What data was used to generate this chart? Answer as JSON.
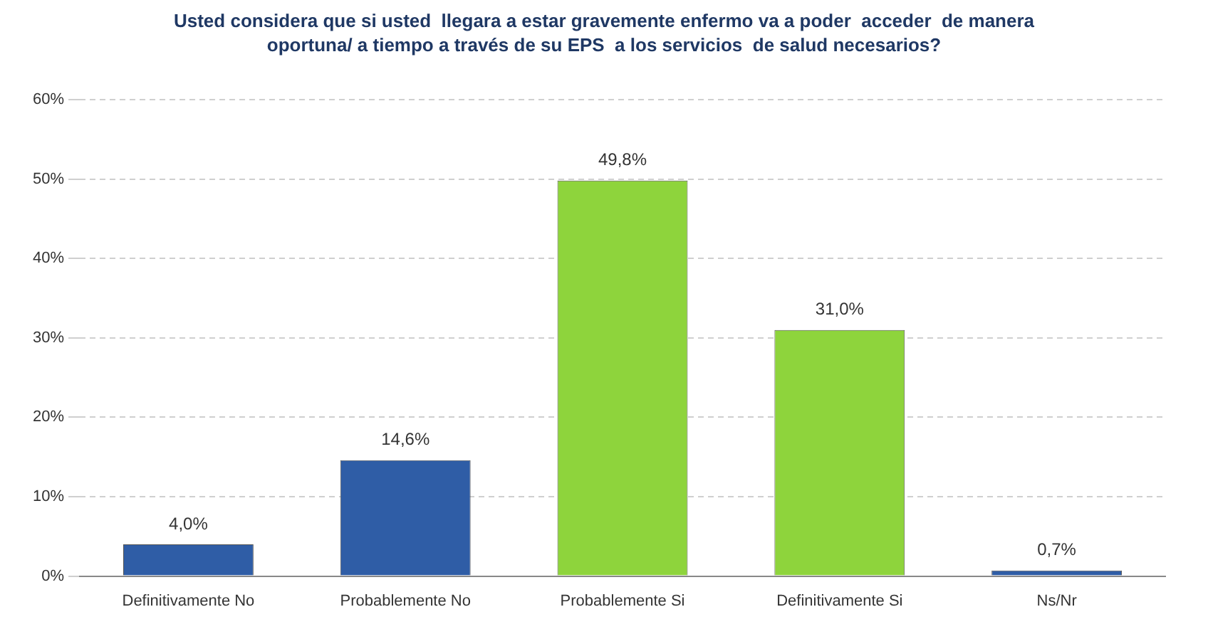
{
  "chart_data": {
    "type": "bar",
    "title": "Usted considera que si usted  llegara a estar gravemente enfermo va a poder  acceder  de manera oportuna/ a tiempo a través de su EPS  a los servicios  de salud necesarios?",
    "categories": [
      "Definitivamente No",
      "Probablemente No",
      "Probablemente Si",
      "Definitivamente Si",
      "Ns/Nr"
    ],
    "values": [
      4.0,
      14.6,
      49.8,
      31.0,
      0.7
    ],
    "colors": [
      "#2f5da6",
      "#2f5da6",
      "#8ed43c",
      "#8ed43c",
      "#2f5da6"
    ],
    "value_labels": [
      "4,0%",
      "14,6%",
      "49,8%",
      "31,0%",
      "0,7%"
    ],
    "ylim": [
      0,
      60
    ],
    "yticks": [
      {
        "value": 0,
        "label": "0%"
      },
      {
        "value": 10,
        "label": "10%"
      },
      {
        "value": 20,
        "label": "20%"
      },
      {
        "value": 30,
        "label": "30%"
      },
      {
        "value": 40,
        "label": "40%"
      },
      {
        "value": 50,
        "label": "50%"
      },
      {
        "value": 60,
        "label": "60%"
      }
    ],
    "grid": "y"
  }
}
